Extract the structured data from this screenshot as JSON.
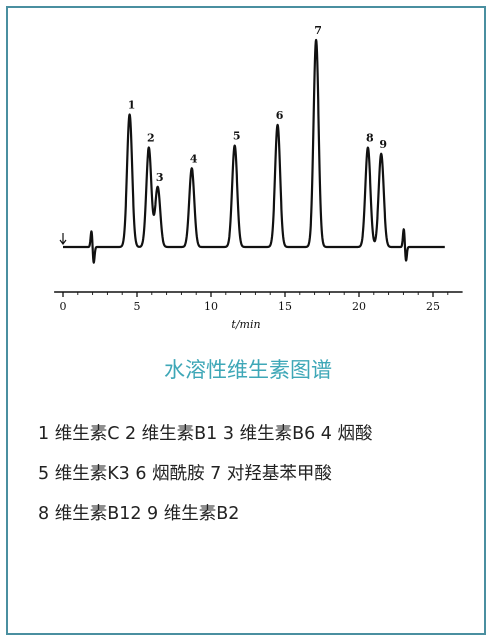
{
  "chart_data": {
    "type": "line",
    "title": "",
    "xlabel": "t/min",
    "ylabel": "",
    "xlim": [
      0,
      26
    ],
    "xticks": [
      "0",
      "5",
      "10",
      "15",
      "20",
      "25"
    ],
    "grid": false,
    "legend": "none",
    "line_color": "#111111",
    "peaks": [
      {
        "label": "1",
        "time": 4.5,
        "height": 0.64
      },
      {
        "label": "2",
        "time": 5.8,
        "height": 0.48
      },
      {
        "label": "3",
        "time": 6.4,
        "height": 0.29
      },
      {
        "label": "4",
        "time": 8.7,
        "height": 0.38
      },
      {
        "label": "5",
        "time": 11.6,
        "height": 0.49
      },
      {
        "label": "6",
        "time": 14.5,
        "height": 0.59
      },
      {
        "label": "7",
        "time": 17.1,
        "height": 1.0
      },
      {
        "label": "8",
        "time": 20.6,
        "height": 0.48
      },
      {
        "label": "9",
        "time": 21.5,
        "height": 0.45
      }
    ],
    "disturbances": [
      {
        "time": 2.0,
        "up": 0.08,
        "down": 0.08
      },
      {
        "time": 23.1,
        "up": 0.09,
        "down": 0.07
      }
    ]
  },
  "caption": "水溶性维生素图谱",
  "caption_color": "#3ea7b7",
  "frame_color": "#4a8fa0",
  "legend_lines": [
    "1 维生素C  2 维生素B1  3 维生素B6  4 烟酸",
    "5 维生素K3  6 烟酰胺  7 对羟基苯甲酸",
    "8 维生素B12  9 维生素B2"
  ]
}
